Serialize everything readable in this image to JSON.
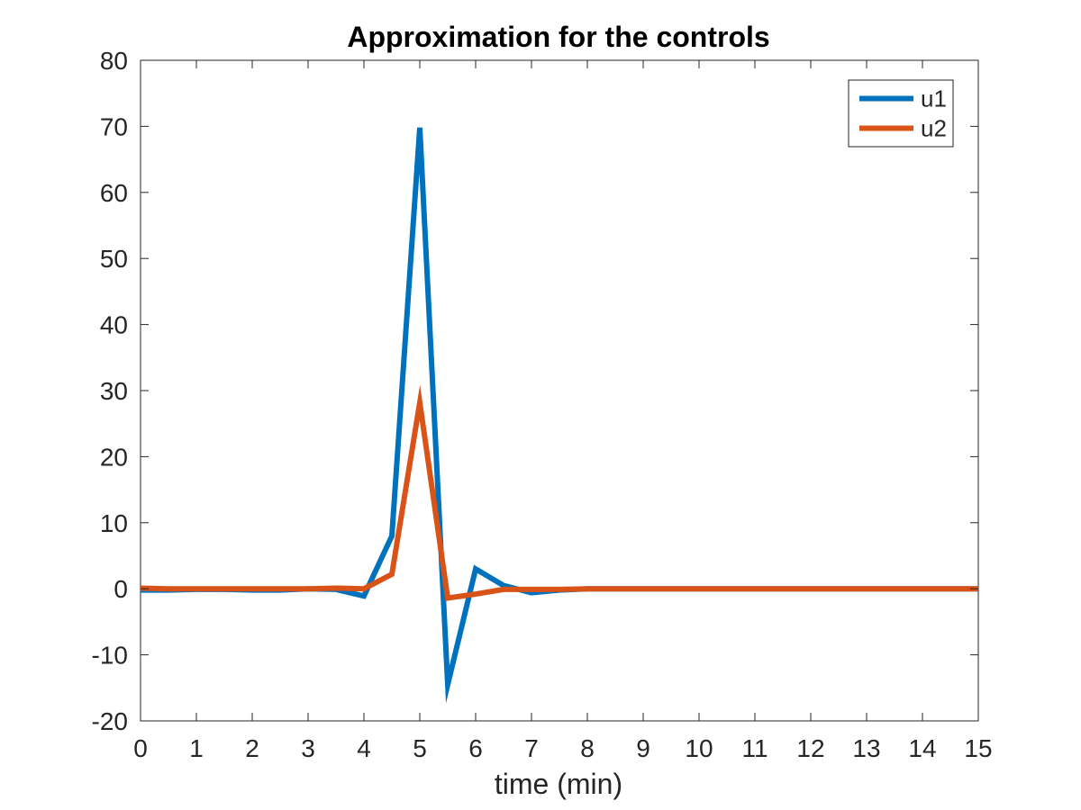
{
  "chart_data": {
    "type": "line",
    "title": "Approximation for the controls",
    "xlabel": "time (min)",
    "ylabel": "",
    "xlim": [
      0,
      15
    ],
    "ylim": [
      -20,
      80
    ],
    "xticks": [
      0,
      1,
      2,
      3,
      4,
      5,
      6,
      7,
      8,
      9,
      10,
      11,
      12,
      13,
      14,
      15
    ],
    "yticks": [
      -20,
      -10,
      0,
      10,
      20,
      30,
      40,
      50,
      60,
      70,
      80
    ],
    "grid": false,
    "legend_position": "top-right",
    "x": [
      0,
      0.5,
      1,
      1.5,
      2,
      2.5,
      3,
      3.5,
      4,
      4.5,
      5,
      5.5,
      6,
      6.5,
      7,
      7.5,
      8,
      8.5,
      9,
      9.5,
      10,
      10.5,
      11,
      11.5,
      12,
      12.5,
      13,
      13.5,
      14,
      14.5,
      15
    ],
    "series": [
      {
        "name": "u1",
        "color": "#0072BD",
        "values": [
          -0.2,
          -0.2,
          -0.1,
          -0.1,
          -0.2,
          -0.2,
          0.0,
          -0.1,
          -1.1,
          8.0,
          69.8,
          -14.5,
          3.0,
          0.5,
          -0.6,
          -0.2,
          0.0,
          0.0,
          0.0,
          0.0,
          0.0,
          0.0,
          0.0,
          0.0,
          0.0,
          0.0,
          0.0,
          0.0,
          0.0,
          0.0,
          0.0
        ]
      },
      {
        "name": "u2",
        "color": "#D95319",
        "values": [
          0.1,
          0.0,
          0.0,
          0.0,
          0.0,
          0.0,
          0.0,
          0.1,
          0.0,
          2.2,
          28.2,
          -1.4,
          -0.8,
          -0.1,
          -0.1,
          -0.1,
          0.0,
          0.0,
          0.0,
          0.0,
          0.0,
          0.0,
          0.0,
          0.0,
          0.0,
          0.0,
          0.0,
          0.0,
          0.0,
          0.0,
          0.0
        ]
      }
    ]
  }
}
